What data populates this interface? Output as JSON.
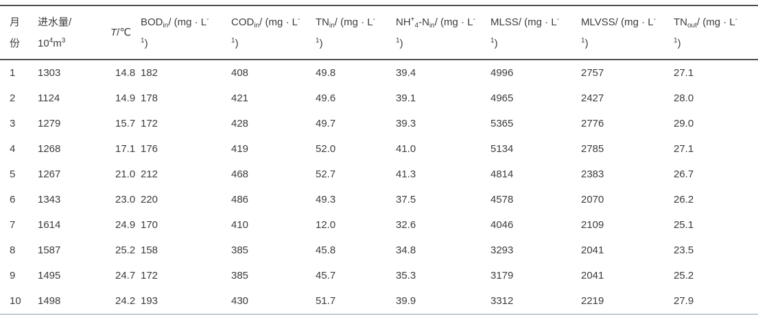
{
  "colors": {
    "text": "#3b3b3b",
    "rule_dark": "#4d4d4d",
    "rule_light": "#c2ccd4",
    "background": "#ffffff"
  },
  "table": {
    "columns": [
      {
        "id": "month",
        "label_html": "月<br>份"
      },
      {
        "id": "influent-volume",
        "label_html": "进水量/<br>10<sup>4</sup>m<sup>3</sup>"
      },
      {
        "id": "temperature",
        "label_html": "<i>T</i>/℃"
      },
      {
        "id": "bod-in",
        "label_html": "BOD<sub>in</sub>/ (mg · L<sup>-</sup><br><sup>1</sup>)"
      },
      {
        "id": "cod-in",
        "label_html": "COD<sub>in</sub>/ (mg · L<sup>-</sup><br><sup>1</sup>)"
      },
      {
        "id": "tn-in",
        "label_html": "TN<sub>in</sub>/ (mg · L<sup>-</sup><br><sup>1</sup>)"
      },
      {
        "id": "nh4-n-in",
        "label_html": "NH<sup>+</sup><sub>4</sub>-N<sub>in</sub>/ (mg · L<sup>-</sup><br><sup>1</sup>)"
      },
      {
        "id": "mlss",
        "label_html": "MLSS/ (mg · L<sup>-</sup><br><sup>1</sup>)"
      },
      {
        "id": "mlvss",
        "label_html": "MLVSS/ (mg · L<sup>-</sup><br><sup>1</sup>)"
      },
      {
        "id": "tn-out",
        "label_html": "TN<sub>out</sub>/ (mg · L<sup>-</sup><br><sup>1</sup>)"
      }
    ],
    "rows": [
      [
        "1",
        "1303",
        "14.8",
        "182",
        "408",
        "49.8",
        "39.4",
        "4996",
        "2757",
        "27.1"
      ],
      [
        "2",
        "1124",
        "14.9",
        "178",
        "421",
        "49.6",
        "39.1",
        "4965",
        "2427",
        "28.0"
      ],
      [
        "3",
        "1279",
        "15.7",
        "172",
        "428",
        "49.7",
        "39.3",
        "5365",
        "2776",
        "29.0"
      ],
      [
        "4",
        "1268",
        "17.1",
        "176",
        "419",
        "52.0",
        "41.0",
        "5134",
        "2785",
        "27.1"
      ],
      [
        "5",
        "1267",
        "21.0",
        "212",
        "468",
        "52.7",
        "41.3",
        "4814",
        "2383",
        "26.7"
      ],
      [
        "6",
        "1343",
        "23.0",
        "220",
        "486",
        "49.3",
        "37.5",
        "4578",
        "2070",
        "26.2"
      ],
      [
        "7",
        "1614",
        "24.9",
        "170",
        "410",
        "12.0",
        "32.6",
        "4046",
        "2109",
        "25.1"
      ],
      [
        "8",
        "1587",
        "25.2",
        "158",
        "385",
        "45.8",
        "34.8",
        "3293",
        "2041",
        "23.5"
      ],
      [
        "9",
        "1495",
        "24.7",
        "172",
        "385",
        "45.7",
        "35.3",
        "3179",
        "2041",
        "25.2"
      ],
      [
        "10",
        "1498",
        "24.2",
        "193",
        "430",
        "51.7",
        "39.9",
        "3312",
        "2219",
        "27.9"
      ]
    ]
  }
}
